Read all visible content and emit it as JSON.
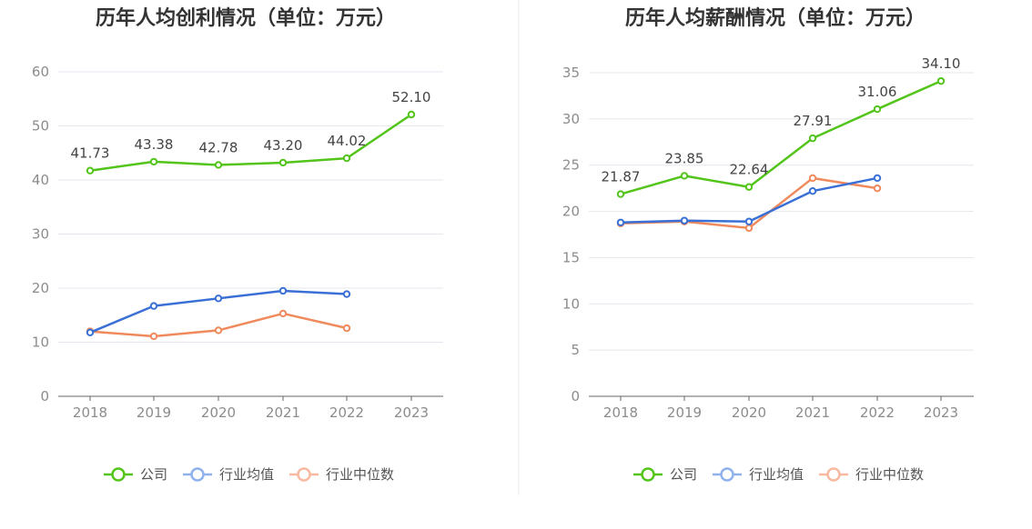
{
  "legend": {
    "company": "公司",
    "industry_avg": "行业均值",
    "industry_median": "行业中位数"
  },
  "colors": {
    "company": "#52c41a",
    "industry_avg": "#3a70d6",
    "industry_median": "#f08a5d",
    "legend_avg": "#8fb2ef",
    "legend_median": "#f9b9a0",
    "grid": "#e4e7ee",
    "axis": "#666666"
  },
  "chart_data": [
    {
      "type": "line",
      "title": "历年人均创利情况（单位：万元）",
      "categories": [
        "2018",
        "2019",
        "2020",
        "2021",
        "2022",
        "2023"
      ],
      "ylim": [
        0,
        60
      ],
      "yticks": [
        0,
        10,
        20,
        30,
        40,
        50,
        60
      ],
      "grid": true,
      "legend_position": "bottom",
      "series": [
        {
          "name": "公司",
          "key": "company",
          "values": [
            41.73,
            43.38,
            42.78,
            43.2,
            44.02,
            52.1
          ],
          "labels": [
            "41.73",
            "43.38",
            "42.78",
            "43.20",
            "44.02",
            "52.10"
          ]
        },
        {
          "name": "行业均值",
          "key": "industry_avg",
          "values": [
            11.8,
            16.7,
            18.1,
            19.5,
            18.9,
            null
          ]
        },
        {
          "name": "行业中位数",
          "key": "industry_median",
          "values": [
            12.0,
            11.1,
            12.2,
            15.3,
            12.6,
            null
          ]
        }
      ]
    },
    {
      "type": "line",
      "title": "历年人均薪酬情况（单位：万元）",
      "categories": [
        "2018",
        "2019",
        "2020",
        "2021",
        "2022",
        "2023"
      ],
      "ylim": [
        0,
        35
      ],
      "yticks": [
        0,
        5,
        10,
        15,
        20,
        25,
        30,
        35
      ],
      "grid": true,
      "legend_position": "bottom",
      "series": [
        {
          "name": "公司",
          "key": "company",
          "values": [
            21.87,
            23.85,
            22.64,
            27.91,
            31.06,
            34.1
          ],
          "labels": [
            "21.87",
            "23.85",
            "22.64",
            "27.91",
            "31.06",
            "34.10"
          ]
        },
        {
          "name": "行业均值",
          "key": "industry_avg",
          "values": [
            18.8,
            19.0,
            18.9,
            22.2,
            23.6,
            null
          ]
        },
        {
          "name": "行业中位数",
          "key": "industry_median",
          "values": [
            18.7,
            18.9,
            18.2,
            23.6,
            22.5,
            null
          ]
        }
      ]
    }
  ]
}
